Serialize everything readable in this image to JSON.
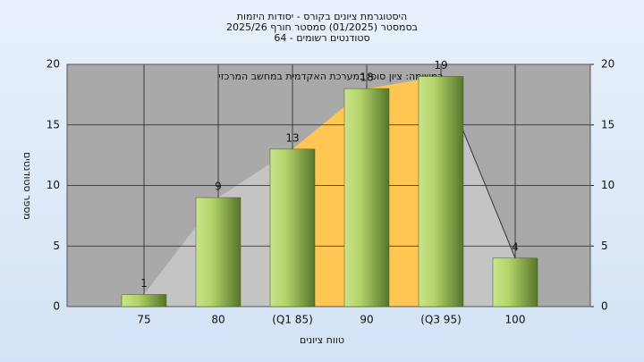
{
  "chart_data": {
    "type": "bar",
    "title_lines": [
      "היסטוגרמת ציונים בקורס - יסודות היזמות",
      "בסמסטר  (01/2025)  סמסטר חורף 2025/26",
      "סטודנטים רשומים - 64"
    ],
    "annotation": "במשימה: ציון סופי במערכת האקדמית במחשב המרכזי",
    "y_label": "מספר סטודנטים",
    "x_label": "טווח ציונים",
    "categories": [
      "75",
      "80",
      "(Q1 85)",
      "90",
      "(Q3 95)",
      "100"
    ],
    "values": [
      1,
      9,
      13,
      18,
      19,
      4
    ],
    "color": "#9cc450",
    "highlight_color": "#ffc654",
    "ylim": [
      0,
      20
    ],
    "yticks": [
      0,
      5,
      10,
      15,
      20
    ],
    "y2lim": [
      0,
      20
    ],
    "y2ticks": [
      0,
      5,
      10,
      15,
      20
    ],
    "grid": true
  }
}
